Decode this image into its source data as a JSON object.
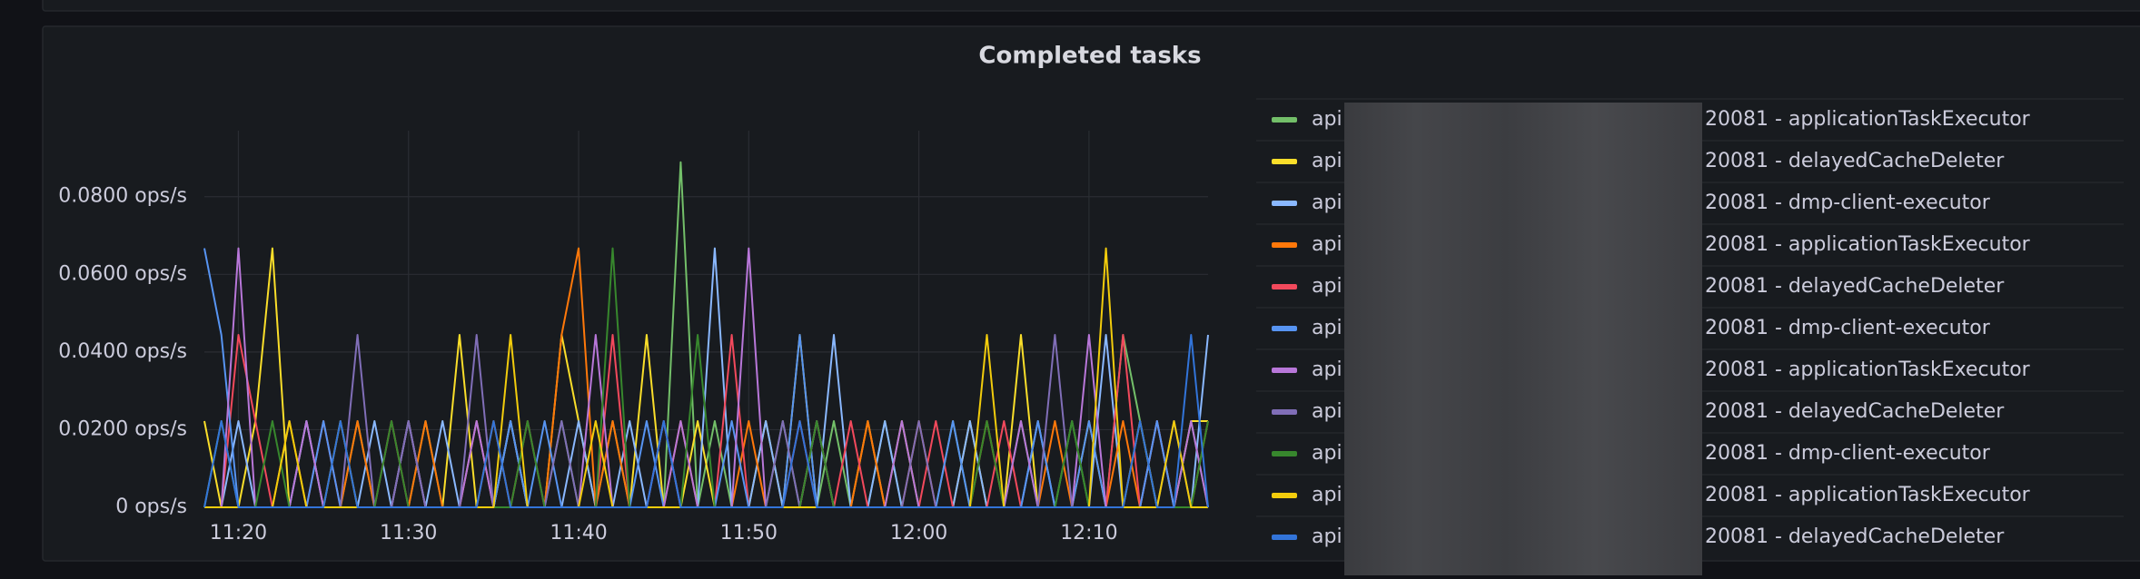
{
  "chart_data": {
    "type": "line",
    "title": "Completed tasks",
    "x": [
      "11:18",
      "11:19",
      "11:20",
      "11:21",
      "11:22",
      "11:23",
      "11:24",
      "11:25",
      "11:26",
      "11:27",
      "11:28",
      "11:29",
      "11:30",
      "11:31",
      "11:32",
      "11:33",
      "11:34",
      "11:35",
      "11:36",
      "11:37",
      "11:38",
      "11:39",
      "11:40",
      "11:41",
      "11:42",
      "11:43",
      "11:44",
      "11:45",
      "11:46",
      "11:47",
      "11:48",
      "11:49",
      "11:50",
      "11:51",
      "11:52",
      "11:53",
      "11:54",
      "11:55",
      "11:56",
      "11:57",
      "11:58",
      "11:59",
      "12:00",
      "12:01",
      "12:02",
      "12:03",
      "12:04",
      "12:05",
      "12:06",
      "12:07",
      "12:08",
      "12:09",
      "12:10",
      "12:11",
      "12:12",
      "12:13",
      "12:14",
      "12:15",
      "12:16",
      "12:17"
    ],
    "xlim": [
      "11:18",
      "12:17"
    ],
    "xticks": [
      "11:20",
      "11:30",
      "11:40",
      "11:50",
      "12:00",
      "12:10"
    ],
    "ylim": [
      0,
      0.097
    ],
    "yticks": [
      {
        "value": 0,
        "label": "0 ops/s"
      },
      {
        "value": 0.02,
        "label": "0.0200 ops/s"
      },
      {
        "value": 0.04,
        "label": "0.0400 ops/s"
      },
      {
        "value": 0.06,
        "label": "0.0600 ops/s"
      },
      {
        "value": 0.08,
        "label": "0.0800 ops/s"
      }
    ],
    "grid": true,
    "series": [
      {
        "name_parts": [
          "api",
          "20081 - applicationTaskExecutor"
        ],
        "color": "#73bf69",
        "values": [
          0,
          0.0222,
          0,
          0,
          0,
          0,
          0.0222,
          0,
          0,
          0.0222,
          0,
          0,
          0,
          0.0222,
          0,
          0,
          0.0222,
          0,
          0,
          0,
          0,
          0.0222,
          0,
          0,
          0.0222,
          0,
          0,
          0,
          0.0889,
          0,
          0.0222,
          0,
          0,
          0,
          0.0222,
          0,
          0,
          0.0222,
          0,
          0,
          0.0222,
          0,
          0,
          0,
          0.0222,
          0,
          0,
          0,
          0.0222,
          0,
          0,
          0.0222,
          0,
          0,
          0.0444,
          0.0222,
          0,
          0,
          0.0222,
          0
        ]
      },
      {
        "name_parts": [
          "api",
          "20081 - delayedCacheDeleter"
        ],
        "color": "#fade2a",
        "values": [
          0.0222,
          0,
          0,
          0.0222,
          0.0667,
          0,
          0,
          0,
          0.0222,
          0,
          0,
          0,
          0.0222,
          0,
          0,
          0.0444,
          0,
          0,
          0.0222,
          0,
          0,
          0.0444,
          0.0222,
          0,
          0,
          0,
          0.0444,
          0,
          0,
          0.0222,
          0,
          0,
          0,
          0.0222,
          0,
          0.0444,
          0,
          0,
          0,
          0.0222,
          0,
          0.0222,
          0,
          0,
          0,
          0.0222,
          0,
          0,
          0.0444,
          0,
          0,
          0,
          0.0222,
          0,
          0,
          0.0222,
          0,
          0,
          0.0222,
          0.0222
        ]
      },
      {
        "name_parts": [
          "api",
          "20081 - dmp-client-executor"
        ],
        "color": "#8ab8ff",
        "values": [
          0,
          0,
          0.0222,
          0,
          0,
          0,
          0.0222,
          0,
          0,
          0,
          0.0222,
          0,
          0,
          0,
          0.0222,
          0,
          0,
          0,
          0.0222,
          0,
          0,
          0,
          0.0222,
          0,
          0,
          0.0222,
          0,
          0,
          0,
          0,
          0.0667,
          0,
          0,
          0.0222,
          0,
          0,
          0,
          0.0444,
          0,
          0,
          0.0222,
          0,
          0,
          0,
          0,
          0.0222,
          0,
          0,
          0,
          0.0222,
          0,
          0,
          0,
          0.0444,
          0,
          0,
          0.0222,
          0,
          0,
          0.0444
        ]
      },
      {
        "name_parts": [
          "api",
          "20081 - applicationTaskExecutor"
        ],
        "color": "#ff780a",
        "values": [
          0,
          0,
          0,
          0,
          0,
          0.0222,
          0,
          0,
          0,
          0.0222,
          0,
          0,
          0,
          0.0222,
          0,
          0,
          0,
          0.0222,
          0,
          0,
          0,
          0.0444,
          0.0667,
          0,
          0.0222,
          0,
          0,
          0,
          0.0222,
          0,
          0,
          0,
          0.0222,
          0,
          0,
          0,
          0.0222,
          0,
          0,
          0.0222,
          0,
          0,
          0.0222,
          0,
          0,
          0,
          0.0222,
          0,
          0,
          0,
          0.0222,
          0,
          0,
          0,
          0.0222,
          0,
          0,
          0,
          0,
          0.0222
        ]
      },
      {
        "name_parts": [
          "api",
          "20081 - delayedCacheDeleter"
        ],
        "color": "#f2495c",
        "values": [
          0,
          0,
          0.0444,
          0.0222,
          0,
          0,
          0,
          0.0222,
          0,
          0,
          0,
          0.0222,
          0,
          0,
          0,
          0,
          0.0222,
          0,
          0,
          0.0222,
          0,
          0,
          0,
          0,
          0.0444,
          0,
          0,
          0.0222,
          0,
          0,
          0,
          0.0444,
          0,
          0,
          0,
          0.0222,
          0,
          0,
          0.0222,
          0,
          0,
          0,
          0,
          0.0222,
          0,
          0,
          0,
          0.0222,
          0,
          0,
          0,
          0,
          0,
          0,
          0.0444,
          0,
          0.0222,
          0,
          0,
          0
        ]
      },
      {
        "name_parts": [
          "api",
          "20081 - dmp-client-executor"
        ],
        "color": "#5794f2",
        "values": [
          0.0667,
          0.0444,
          0,
          0,
          0,
          0,
          0,
          0.0222,
          0,
          0,
          0,
          0,
          0.0222,
          0,
          0,
          0,
          0,
          0,
          0.0222,
          0,
          0.0222,
          0,
          0,
          0,
          0,
          0,
          0.0222,
          0,
          0,
          0,
          0,
          0.0222,
          0,
          0,
          0,
          0.0444,
          0,
          0,
          0,
          0,
          0,
          0,
          0,
          0,
          0.0222,
          0,
          0,
          0,
          0,
          0.0222,
          0,
          0,
          0.0222,
          0,
          0,
          0,
          0.0222,
          0,
          0,
          0
        ]
      },
      {
        "name_parts": [
          "api",
          "20081 - applicationTaskExecutor"
        ],
        "color": "#b877d9",
        "values": [
          0,
          0,
          0.0667,
          0,
          0,
          0,
          0.0222,
          0,
          0,
          0,
          0,
          0,
          0.0222,
          0,
          0,
          0,
          0.0222,
          0,
          0,
          0,
          0,
          0,
          0,
          0.0444,
          0,
          0,
          0,
          0,
          0.0222,
          0,
          0,
          0,
          0.0667,
          0,
          0,
          0,
          0.0222,
          0,
          0,
          0,
          0,
          0.0222,
          0,
          0,
          0,
          0,
          0,
          0,
          0.0222,
          0,
          0,
          0,
          0.0444,
          0,
          0,
          0,
          0,
          0,
          0.0222,
          0
        ]
      },
      {
        "name_parts": [
          "api",
          "20081 - delayedCacheDeleter"
        ],
        "color": "#806eb7",
        "values": [
          0,
          0,
          0,
          0,
          0,
          0,
          0,
          0,
          0,
          0.0444,
          0,
          0,
          0.0222,
          0,
          0,
          0,
          0.0444,
          0,
          0,
          0,
          0,
          0.0222,
          0,
          0,
          0,
          0,
          0,
          0.0222,
          0,
          0,
          0,
          0,
          0,
          0,
          0.0222,
          0,
          0,
          0,
          0,
          0,
          0,
          0,
          0.0222,
          0,
          0,
          0,
          0,
          0,
          0,
          0,
          0.0444,
          0,
          0,
          0,
          0,
          0,
          0,
          0.0222,
          0,
          0
        ]
      },
      {
        "name_parts": [
          "api",
          "20081 - dmp-client-executor"
        ],
        "color": "#37872d",
        "values": [
          0,
          0,
          0,
          0,
          0.0222,
          0,
          0,
          0,
          0,
          0,
          0,
          0.0222,
          0,
          0,
          0,
          0,
          0,
          0,
          0,
          0.0222,
          0,
          0,
          0,
          0,
          0.0667,
          0,
          0,
          0,
          0,
          0.0444,
          0,
          0,
          0,
          0,
          0,
          0,
          0.0222,
          0,
          0,
          0,
          0,
          0,
          0,
          0,
          0,
          0,
          0.0222,
          0,
          0,
          0,
          0,
          0.0222,
          0,
          0,
          0,
          0,
          0,
          0,
          0,
          0.0222
        ]
      },
      {
        "name_parts": [
          "api",
          "20081 - applicationTaskExecutor"
        ],
        "color": "#f2cc0c",
        "values": [
          0,
          0,
          0,
          0,
          0,
          0.0222,
          0,
          0,
          0,
          0,
          0,
          0,
          0,
          0,
          0,
          0,
          0,
          0,
          0.0444,
          0,
          0,
          0,
          0,
          0.0222,
          0,
          0,
          0,
          0,
          0,
          0,
          0,
          0,
          0,
          0,
          0,
          0,
          0,
          0,
          0,
          0,
          0,
          0,
          0,
          0,
          0,
          0,
          0.0444,
          0,
          0,
          0,
          0,
          0,
          0,
          0.0667,
          0,
          0,
          0,
          0.0222,
          0,
          0
        ]
      },
      {
        "name_parts": [
          "api",
          "20081 - delayedCacheDeleter"
        ],
        "color": "#3274d9",
        "values": [
          0,
          0.0222,
          0,
          0,
          0,
          0,
          0,
          0,
          0.0222,
          0,
          0,
          0,
          0,
          0,
          0,
          0,
          0,
          0.0222,
          0,
          0,
          0,
          0,
          0,
          0,
          0,
          0,
          0,
          0.0222,
          0,
          0,
          0,
          0,
          0,
          0,
          0,
          0.0222,
          0,
          0,
          0,
          0,
          0,
          0,
          0,
          0,
          0,
          0,
          0,
          0,
          0,
          0,
          0,
          0,
          0,
          0,
          0,
          0.0222,
          0,
          0,
          0.0444,
          0
        ]
      }
    ]
  }
}
